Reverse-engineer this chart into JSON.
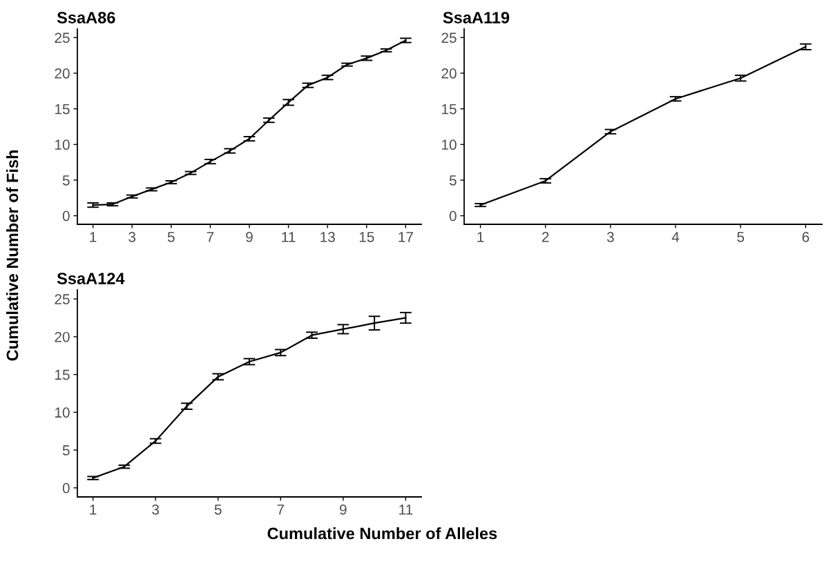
{
  "chart_data": [
    {
      "type": "line",
      "title": "SsaA86",
      "xlabel": "Cumulative Number of Alleles",
      "ylabel": "Cumulative Number of Fish",
      "x": [
        1,
        2,
        3,
        4,
        5,
        6,
        7,
        8,
        9,
        10,
        11,
        12,
        13,
        14,
        15,
        16,
        17
      ],
      "series": [
        {
          "color": "#000000",
          "values": [
            1.5,
            1.6,
            2.7,
            3.7,
            4.7,
            6.0,
            7.6,
            9.1,
            10.8,
            13.4,
            15.9,
            18.3,
            19.4,
            21.2,
            22.1,
            23.2,
            24.6
          ],
          "errors": [
            0.3,
            0.2,
            0.2,
            0.2,
            0.2,
            0.2,
            0.3,
            0.3,
            0.3,
            0.3,
            0.4,
            0.3,
            0.3,
            0.2,
            0.3,
            0.2,
            0.3
          ]
        }
      ],
      "xlim": [
        0.2,
        17.8
      ],
      "xticks": [
        1,
        3,
        5,
        7,
        9,
        11,
        13,
        15,
        17
      ],
      "ylim": [
        -1.2,
        26.2
      ],
      "yticks": [
        0,
        5,
        10,
        15,
        20,
        25
      ]
    },
    {
      "type": "line",
      "title": "SsaA119",
      "x": [
        1,
        2,
        3,
        4,
        5,
        6
      ],
      "series": [
        {
          "color": "#000000",
          "values": [
            1.5,
            4.9,
            11.8,
            16.4,
            19.3,
            23.7
          ],
          "errors": [
            0.2,
            0.3,
            0.3,
            0.3,
            0.4,
            0.4
          ]
        }
      ],
      "xlim": [
        0.75,
        6.25
      ],
      "xticks": [
        1,
        2,
        3,
        4,
        5,
        6
      ],
      "ylim": [
        -1.2,
        26.2
      ],
      "yticks": [
        0,
        5,
        10,
        15,
        20,
        25
      ]
    },
    {
      "type": "line",
      "title": "SsaA124",
      "x": [
        1,
        2,
        3,
        4,
        5,
        6,
        7,
        8,
        9,
        10,
        11
      ],
      "series": [
        {
          "color": "#000000",
          "values": [
            1.3,
            2.8,
            6.2,
            10.8,
            14.7,
            16.7,
            17.9,
            20.2,
            21.0,
            21.8,
            22.5
          ],
          "errors": [
            0.2,
            0.2,
            0.3,
            0.4,
            0.4,
            0.4,
            0.4,
            0.4,
            0.6,
            0.9,
            0.7
          ]
        }
      ],
      "xlim": [
        0.5,
        11.5
      ],
      "xticks": [
        1,
        3,
        5,
        7,
        9,
        11
      ],
      "ylim": [
        -1.2,
        26.2
      ],
      "yticks": [
        0,
        5,
        10,
        15,
        20,
        25
      ]
    }
  ]
}
